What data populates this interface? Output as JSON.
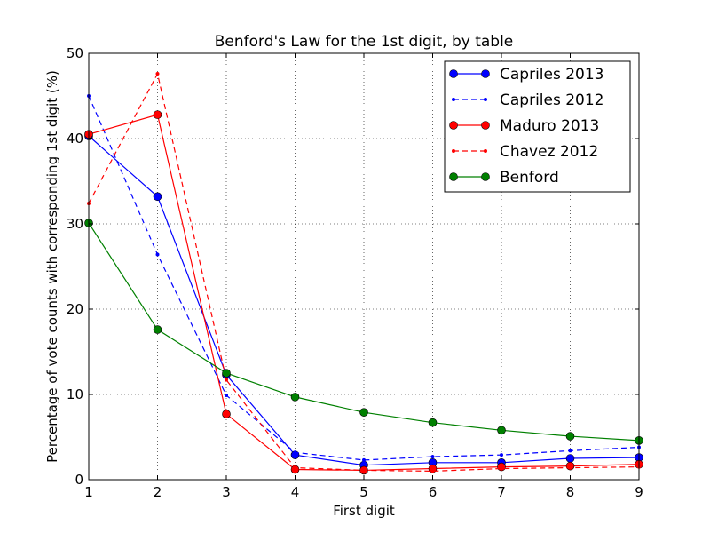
{
  "chart_data": {
    "type": "line",
    "title": "Benford's Law for the 1st digit, by table",
    "xlabel": "First digit",
    "ylabel": "Percentage of vote counts with corresponding 1st digit (%)",
    "x": [
      1,
      2,
      3,
      4,
      5,
      6,
      7,
      8,
      9
    ],
    "xlim": [
      1,
      9
    ],
    "ylim": [
      0,
      50
    ],
    "xticks": [
      "1",
      "2",
      "3",
      "4",
      "5",
      "6",
      "7",
      "8",
      "9"
    ],
    "yticks": [
      "0",
      "10",
      "20",
      "30",
      "40",
      "50"
    ],
    "grid": true,
    "legend_position": "top-right",
    "series": [
      {
        "name": "Capriles 2013",
        "color": "#0000ff",
        "dash": "solid",
        "marker": "large",
        "values": [
          40.3,
          33.2,
          12.3,
          2.9,
          1.7,
          2.0,
          2.0,
          2.5,
          2.6
        ]
      },
      {
        "name": "Capriles 2012",
        "color": "#0000ff",
        "dash": "dashed",
        "marker": "small",
        "values": [
          45.0,
          26.4,
          9.9,
          3.2,
          2.3,
          2.7,
          2.9,
          3.4,
          3.8
        ]
      },
      {
        "name": "Maduro 2013",
        "color": "#ff0000",
        "dash": "solid",
        "marker": "large",
        "values": [
          40.5,
          42.8,
          7.7,
          1.2,
          1.1,
          1.3,
          1.5,
          1.6,
          1.8
        ]
      },
      {
        "name": "Chavez 2012",
        "color": "#ff0000",
        "dash": "dashed",
        "marker": "small",
        "values": [
          32.4,
          47.6,
          11.7,
          1.4,
          1.1,
          1.0,
          1.3,
          1.4,
          1.5
        ]
      },
      {
        "name": "Benford",
        "color": "#008000",
        "dash": "solid",
        "marker": "large",
        "values": [
          30.1,
          17.6,
          12.5,
          9.7,
          7.9,
          6.7,
          5.8,
          5.1,
          4.6
        ]
      }
    ]
  }
}
